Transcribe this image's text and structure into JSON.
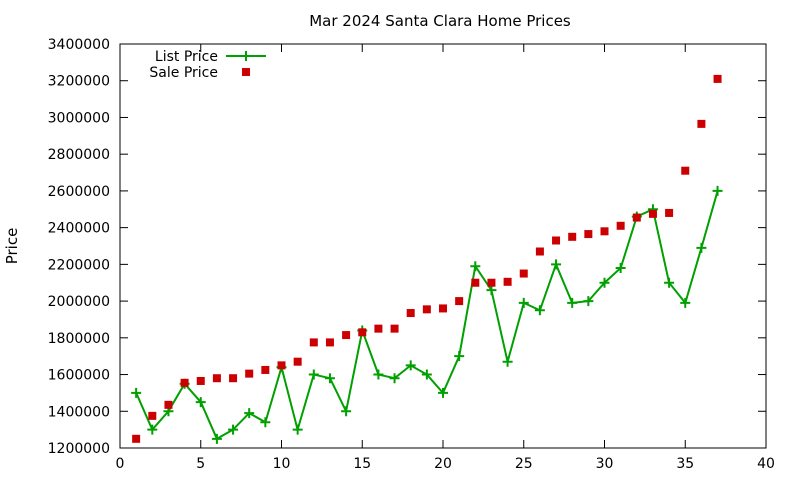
{
  "chart_data": {
    "type": "line",
    "title": "Mar 2024 Santa Clara Home Prices",
    "xlabel": "",
    "ylabel": "Price",
    "xlim": [
      0,
      40
    ],
    "ylim": [
      1200000,
      3400000
    ],
    "xticks": [
      "0",
      "5",
      "10",
      "15",
      "20",
      "25",
      "30",
      "35",
      "40"
    ],
    "yticks": [
      "1200000",
      "1400000",
      "1600000",
      "1800000",
      "2000000",
      "2200000",
      "2400000",
      "2600000",
      "2800000",
      "3000000",
      "3200000",
      "3400000"
    ],
    "legend_position": "top-left",
    "grid": false,
    "series": [
      {
        "name": "List Price",
        "style": "line-with-plus-markers",
        "color": "#00a000",
        "x": [
          1,
          2,
          3,
          4,
          5,
          6,
          7,
          8,
          9,
          10,
          11,
          12,
          13,
          14,
          15,
          16,
          17,
          18,
          19,
          20,
          21,
          22,
          23,
          24,
          25,
          26,
          27,
          28,
          29,
          30,
          31,
          32,
          33,
          34,
          35,
          36,
          37
        ],
        "y": [
          1500000,
          1300000,
          1400000,
          1550000,
          1450000,
          1250000,
          1300000,
          1390000,
          1340000,
          1640000,
          1300000,
          1600000,
          1580000,
          1400000,
          1840000,
          1600000,
          1580000,
          1650000,
          1600000,
          1500000,
          1700000,
          2190000,
          2060000,
          1670000,
          1990000,
          1950000,
          2200000,
          1990000,
          2000000,
          2100000,
          2180000,
          2460000,
          2500000,
          2100000,
          1990000,
          2290000,
          2600000
        ]
      },
      {
        "name": "Sale Price",
        "style": "square-markers",
        "color": "#cc0000",
        "x": [
          1,
          2,
          3,
          4,
          5,
          6,
          7,
          8,
          9,
          10,
          11,
          12,
          13,
          14,
          15,
          16,
          17,
          18,
          19,
          20,
          21,
          22,
          23,
          24,
          25,
          26,
          27,
          28,
          29,
          30,
          31,
          32,
          33,
          34,
          35,
          36,
          37
        ],
        "y": [
          1250000,
          1375000,
          1435000,
          1555000,
          1565000,
          1580000,
          1580000,
          1605000,
          1625000,
          1650000,
          1670000,
          1775000,
          1775000,
          1815000,
          1830000,
          1850000,
          1850000,
          1935000,
          1955000,
          1960000,
          2000000,
          2100000,
          2100000,
          2105000,
          2150000,
          2270000,
          2330000,
          2350000,
          2365000,
          2380000,
          2410000,
          2455000,
          2475000,
          2480000,
          2710000,
          2965000,
          3210000
        ]
      }
    ]
  }
}
